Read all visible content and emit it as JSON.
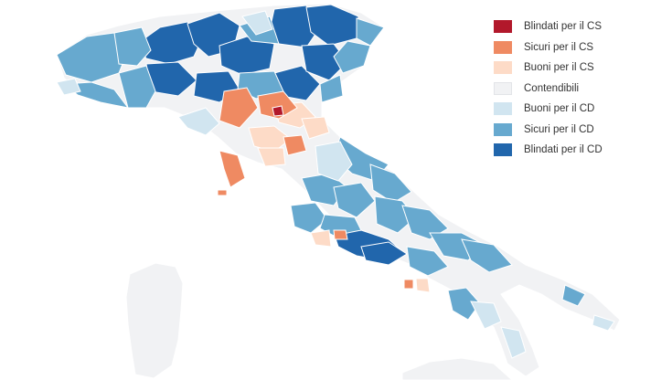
{
  "legend": {
    "items": [
      {
        "label": "Blindati per il CS",
        "color": "#b2182b"
      },
      {
        "label": "Sicuri per il CS",
        "color": "#ef8a62"
      },
      {
        "label": "Buoni per il CS",
        "color": "#fddbc7"
      },
      {
        "label": "Contendibili",
        "color": "#f1f2f4"
      },
      {
        "label": "Buoni per il CD",
        "color": "#d1e5f0"
      },
      {
        "label": "Sicuri per il CD",
        "color": "#67a9cf"
      },
      {
        "label": "Blindati per il CD",
        "color": "#2166ac"
      }
    ]
  },
  "map": {
    "base_color": "#f1f2f4",
    "border_color": "#ffffff"
  }
}
